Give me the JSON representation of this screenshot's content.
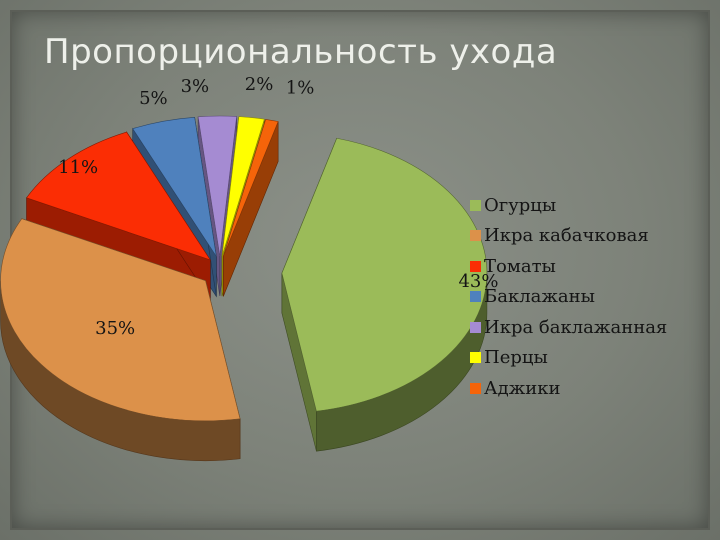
{
  "title": "Пропорциональность  ухода",
  "chart_data": {
    "type": "pie",
    "title": "Пропорциональность  ухода",
    "legend_position": "right",
    "slices": [
      {
        "label": "Огурцы",
        "value": 43,
        "value_label": "43%",
        "color": "#9bbb59"
      },
      {
        "label": "Икра кабачковая",
        "value": 35,
        "value_label": "35%",
        "color": "#dc914a"
      },
      {
        "label": "Томаты",
        "value": 11,
        "value_label": "11%",
        "color": "#fb2d04"
      },
      {
        "label": "Баклажаны",
        "value": 5,
        "value_label": "5%",
        "color": "#4f81bd"
      },
      {
        "label": "Икра баклажанная",
        "value": 3,
        "value_label": "3%",
        "color": "#a58bd2"
      },
      {
        "label": "Перцы",
        "value": 2,
        "value_label": "2%",
        "color": "#ffff00"
      },
      {
        "label": "Аджики",
        "value": 1,
        "value_label": "1%",
        "color": "#f5640a"
      }
    ]
  }
}
